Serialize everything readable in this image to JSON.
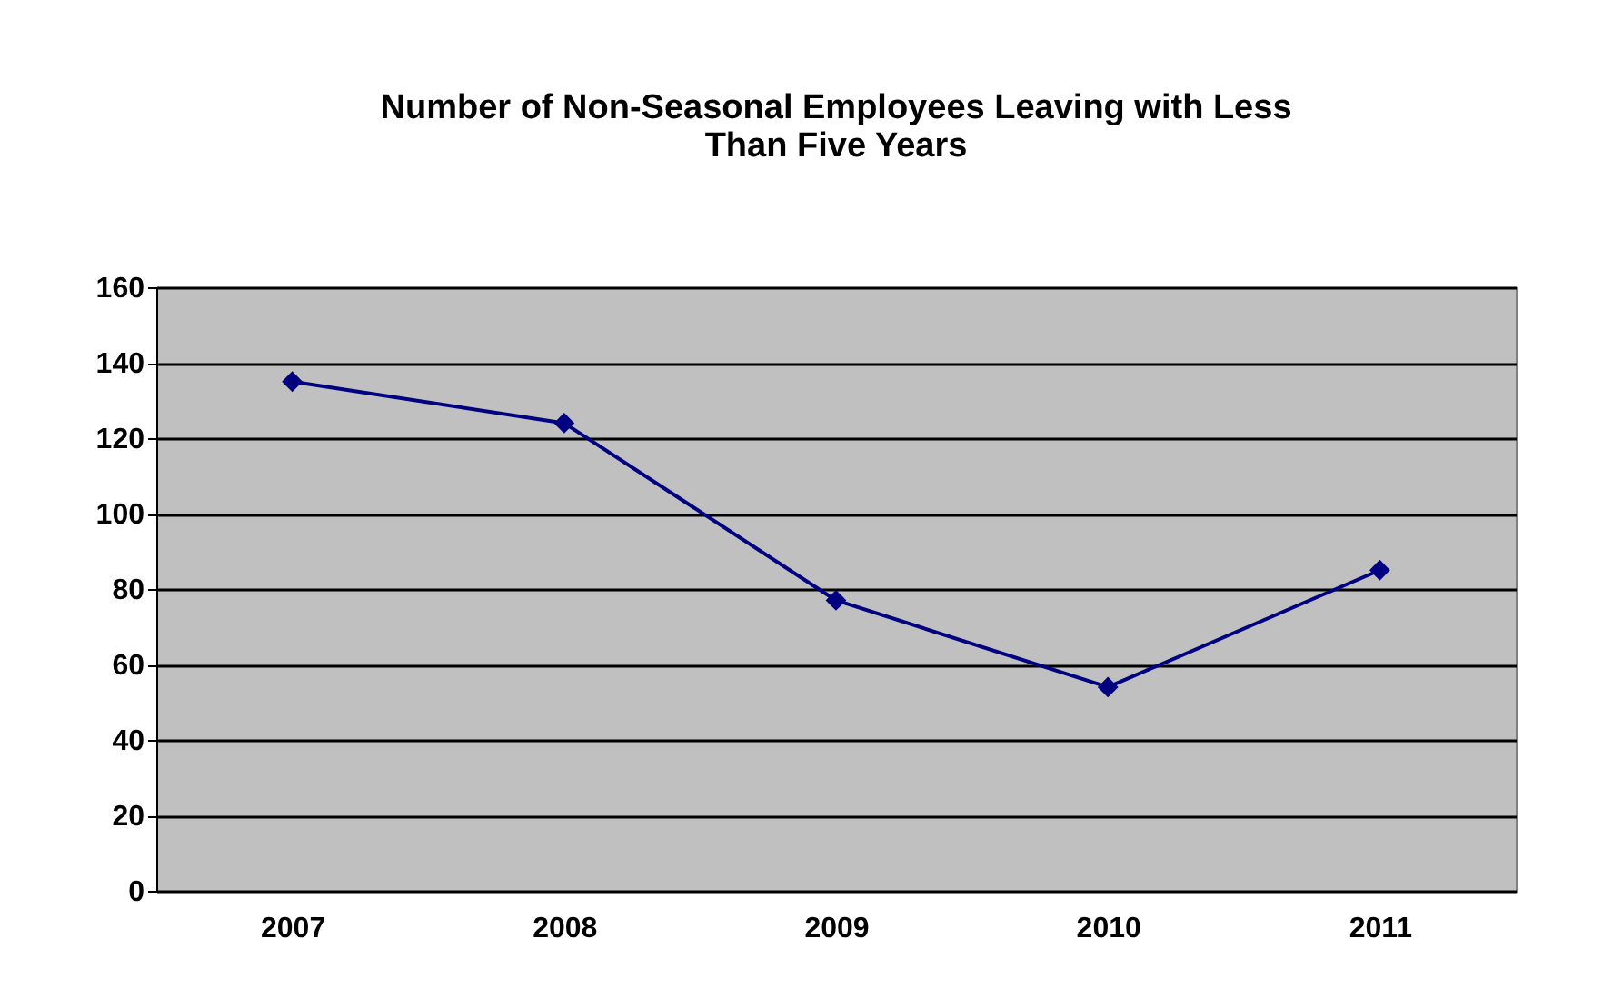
{
  "chart_data": {
    "type": "line",
    "title": [
      "Number of Non-Seasonal Employees Leaving with Less",
      "Than Five Years"
    ],
    "categories": [
      "2007",
      "2008",
      "2009",
      "2010",
      "2011"
    ],
    "series": [
      {
        "color": "#000080",
        "values": [
          135,
          124,
          77,
          54,
          85
        ]
      }
    ],
    "ylim": [
      0,
      160
    ],
    "yticks": [
      0,
      20,
      40,
      60,
      80,
      100,
      120,
      140,
      160
    ],
    "grid": "y",
    "marker": "diamond",
    "line_style": "solid"
  }
}
